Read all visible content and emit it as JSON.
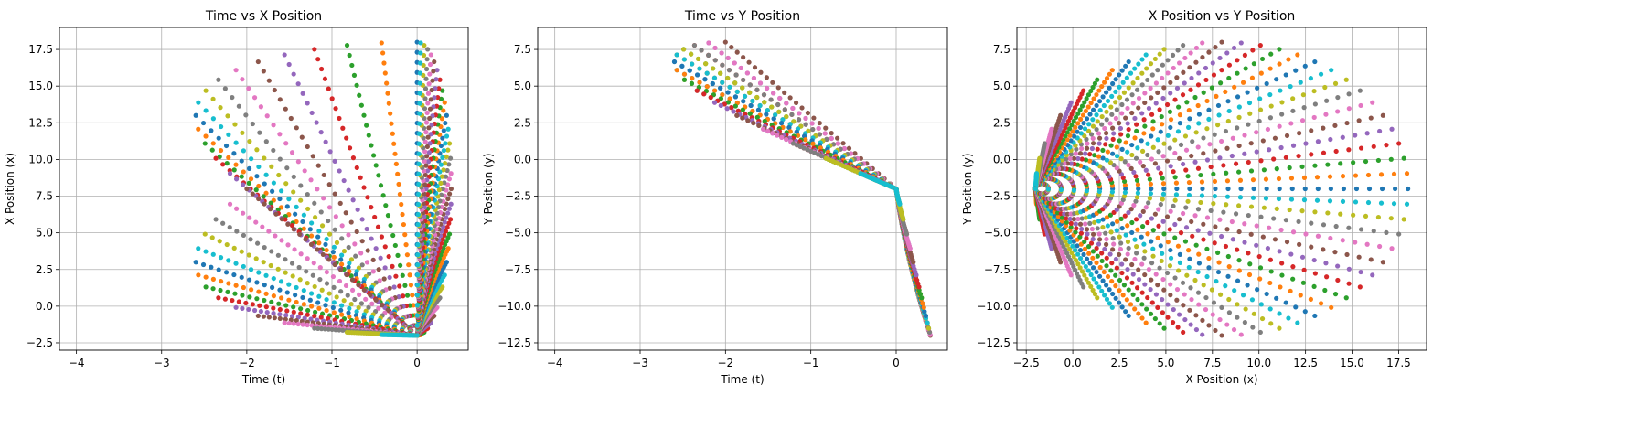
{
  "chart_data": [
    {
      "type": "scatter",
      "title": "Time vs X Position",
      "xlabel": "Time (t)",
      "ylabel": "X Position (x)",
      "xlim": [
        -4.2,
        0.6
      ],
      "ylim": [
        -3.0,
        19.0
      ],
      "xticks": [
        -4,
        -3,
        -2,
        -1,
        0
      ],
      "yticks": [
        -2.5,
        0.0,
        2.5,
        5.0,
        7.5,
        10.0,
        12.5,
        15.0,
        17.5
      ],
      "xtick_labels": [
        "−4",
        "−3",
        "−2",
        "−1",
        "0"
      ],
      "ytick_labels": [
        "−2.5",
        "0.0",
        "2.5",
        "5.0",
        "7.5",
        "10.0",
        "12.5",
        "15.0",
        "17.5"
      ],
      "grid": true,
      "series_rule": "60 trajectories, launch angle θ_k = 2πk/60 (k = 0..59); x(t) = −2 + 20·cos(θ_k)·s, y(t) = −2 + 10·sin(θ_k)·s, s ∈ [0,1]; t(s) = 4·s·sin(θ_k)·|sin(θ_k)|·(−1) for upper-half θ, 0.4·s·|sin(θ_k)| for lower-half θ",
      "series_count": 60,
      "point_count_per_series": 30,
      "axes": "t-x"
    },
    {
      "type": "scatter",
      "title": "Time vs Y Position",
      "xlabel": "Time (t)",
      "ylabel": "Y Position (y)",
      "xlim": [
        -4.2,
        0.6
      ],
      "ylim": [
        -13.0,
        9.0
      ],
      "xticks": [
        -4,
        -3,
        -2,
        -1,
        0
      ],
      "yticks": [
        -12.5,
        -10.0,
        -7.5,
        -5.0,
        -2.5,
        0.0,
        2.5,
        5.0,
        7.5
      ],
      "xtick_labels": [
        "−4",
        "−3",
        "−2",
        "−1",
        "0"
      ],
      "ytick_labels": [
        "−12.5",
        "−10.0",
        "−7.5",
        "−5.0",
        "−2.5",
        "0.0",
        "2.5",
        "5.0",
        "7.5"
      ],
      "grid": true,
      "series_count": 60,
      "point_count_per_series": 30,
      "axes": "t-y"
    },
    {
      "type": "scatter",
      "title": "X Position vs Y Position",
      "xlabel": "X Position (x)",
      "ylabel": "Y Position (y)",
      "xlim": [
        -3.0,
        19.0
      ],
      "ylim": [
        -13.0,
        9.0
      ],
      "xticks": [
        -2.5,
        0.0,
        2.5,
        5.0,
        7.5,
        10.0,
        12.5,
        15.0,
        17.5
      ],
      "yticks": [
        -12.5,
        -10.0,
        -7.5,
        -5.0,
        -2.5,
        0.0,
        2.5,
        5.0,
        7.5
      ],
      "xtick_labels": [
        "−2.5",
        "0.0",
        "2.5",
        "5.0",
        "7.5",
        "10.0",
        "12.5",
        "15.0",
        "17.5"
      ],
      "ytick_labels": [
        "−12.5",
        "−10.0",
        "−7.5",
        "−5.0",
        "−2.5",
        "0.0",
        "2.5",
        "5.0",
        "7.5"
      ],
      "grid": true,
      "series_count": 60,
      "point_count_per_series": 30,
      "axes": "x-y"
    }
  ],
  "palette": [
    "#1f77b4",
    "#ff7f0e",
    "#2ca02c",
    "#d62728",
    "#9467bd",
    "#8c564b",
    "#e377c2",
    "#7f7f7f",
    "#bcbd22",
    "#17becf"
  ],
  "trajectory_model": {
    "x0": -2.0,
    "y0": -2.0,
    "x_amp": 20.0,
    "y_up": 10.0,
    "y_down": 10.0,
    "t_up": 4.0,
    "t_down": 0.4
  }
}
